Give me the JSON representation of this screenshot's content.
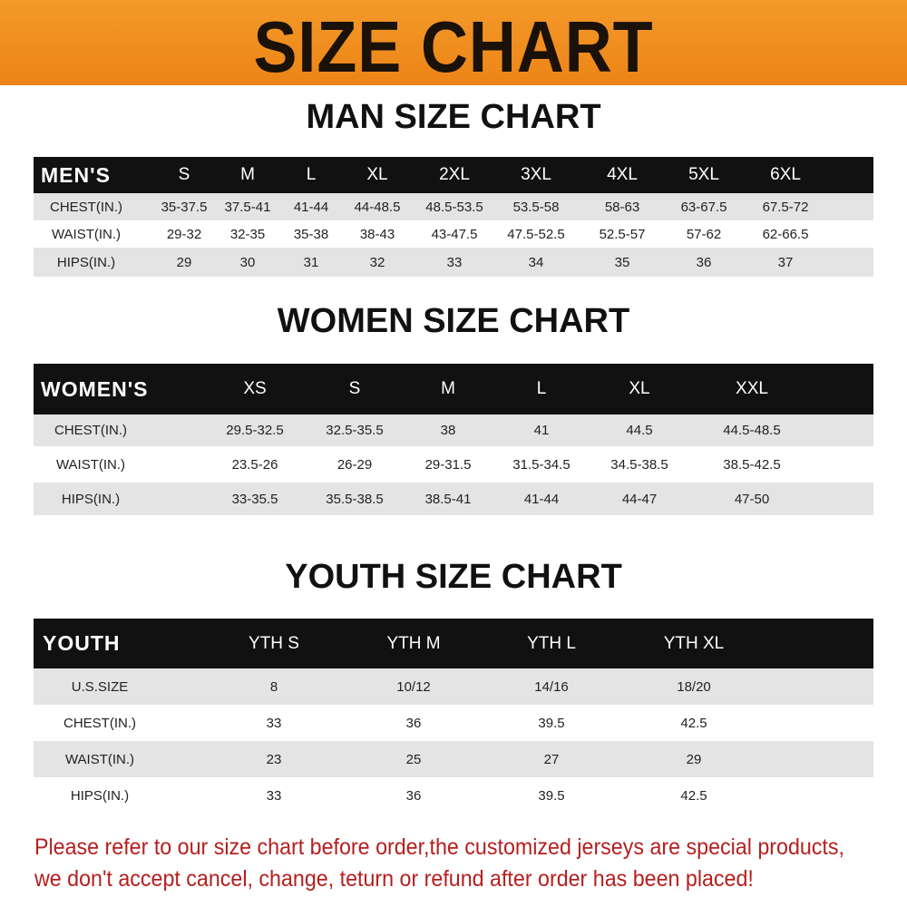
{
  "title": "SIZE CHART",
  "colors": {
    "banner": "#ec8416",
    "header_row": "#111111",
    "stripe": "#e4e4e4",
    "notice": "#b51f1f"
  },
  "tables": [
    {
      "title": "MAN SIZE CHART",
      "header_label": "MEN'S",
      "sizes": [
        "S",
        "M",
        "L",
        "XL",
        "2XL",
        "3XL",
        "4XL",
        "5XL",
        "6XL"
      ],
      "rows": [
        {
          "label": "CHEST(IN.)",
          "values": [
            "35-37.5",
            "37.5-41",
            "41-44",
            "44-48.5",
            "48.5-53.5",
            "53.5-58",
            "58-63",
            "63-67.5",
            "67.5-72"
          ]
        },
        {
          "label": "WAIST(IN.)",
          "values": [
            "29-32",
            "32-35",
            "35-38",
            "38-43",
            "43-47.5",
            "47.5-52.5",
            "52.5-57",
            "57-62",
            "62-66.5"
          ]
        },
        {
          "label": "HIPS(IN.)",
          "values": [
            "29",
            "30",
            "31",
            "32",
            "33",
            "34",
            "35",
            "36",
            "37"
          ]
        }
      ]
    },
    {
      "title": "WOMEN SIZE CHART",
      "header_label": "WOMEN'S",
      "sizes": [
        "XS",
        "S",
        "M",
        "L",
        "XL",
        "XXL"
      ],
      "rows": [
        {
          "label": "CHEST(IN.)",
          "values": [
            "29.5-32.5",
            "32.5-35.5",
            "38",
            "41",
            "44.5",
            "44.5-48.5"
          ]
        },
        {
          "label": "WAIST(IN.)",
          "values": [
            "23.5-26",
            "26-29",
            "29-31.5",
            "31.5-34.5",
            "34.5-38.5",
            "38.5-42.5"
          ]
        },
        {
          "label": "HIPS(IN.)",
          "values": [
            "33-35.5",
            "35.5-38.5",
            "38.5-41",
            "41-44",
            "44-47",
            "47-50"
          ]
        }
      ]
    },
    {
      "title": "YOUTH SIZE CHART",
      "header_label": "YOUTH",
      "sizes": [
        "YTH S",
        "YTH M",
        "YTH L",
        "YTH XL"
      ],
      "rows": [
        {
          "label": "U.S.SIZE",
          "values": [
            "8",
            "10/12",
            "14/16",
            "18/20"
          ]
        },
        {
          "label": "CHEST(IN.)",
          "values": [
            "33",
            "36",
            "39.5",
            "42.5"
          ]
        },
        {
          "label": "WAIST(IN.)",
          "values": [
            "23",
            "25",
            "27",
            "29"
          ]
        },
        {
          "label": "HIPS(IN.)",
          "values": [
            "33",
            "36",
            "39.5",
            "42.5"
          ]
        }
      ]
    }
  ],
  "notice": [
    "Please refer to our size chart before order,the customized jerseys are special products,",
    "we don't accept cancel, change, teturn or refund after order has been placed!"
  ]
}
